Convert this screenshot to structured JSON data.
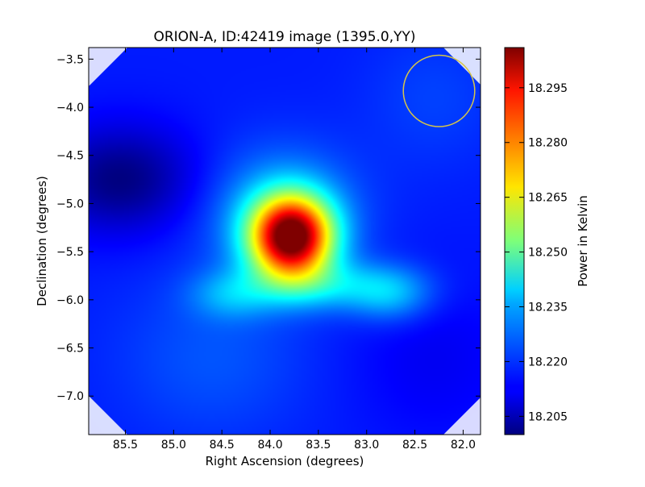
{
  "chart_data": {
    "type": "heatmap",
    "title": "ORION-A, ID:42419 image (1395.0,YY)",
    "xlabel": "Right Ascension (degrees)",
    "ylabel": "Declination (degrees)",
    "xlim": [
      85.88,
      81.82
    ],
    "ylim": [
      -7.4,
      -3.38
    ],
    "xticks": [
      85.5,
      85.0,
      84.5,
      84.0,
      83.5,
      83.0,
      82.5,
      82.0
    ],
    "xtick_labels": [
      "85.5",
      "85.0",
      "84.5",
      "84.0",
      "83.5",
      "83.0",
      "82.5",
      "82.0"
    ],
    "yticks": [
      -3.5,
      -4.0,
      -4.5,
      -5.0,
      -5.5,
      -6.0,
      -6.5,
      -7.0
    ],
    "ytick_labels": [
      "−3.5",
      "−4.0",
      "−4.5",
      "−5.0",
      "−5.5",
      "−6.0",
      "−6.5",
      "−7.0"
    ],
    "colorbar": {
      "label": "Power in Kelvin",
      "range": [
        18.2,
        18.306
      ],
      "ticks": [
        18.205,
        18.22,
        18.235,
        18.25,
        18.265,
        18.28,
        18.295
      ],
      "tick_labels": [
        "18.205",
        "18.220",
        "18.235",
        "18.250",
        "18.265",
        "18.280",
        "18.295"
      ],
      "colormap": "jet"
    },
    "background_level": 18.216,
    "features": [
      {
        "kind": "peak",
        "ra": 83.78,
        "dec": -5.35,
        "value": 18.306
      },
      {
        "kind": "ridge",
        "ra": 83.3,
        "dec": -5.85,
        "value": 18.238
      },
      {
        "kind": "ridge",
        "ra": 82.7,
        "dec": -5.95,
        "value": 18.236
      },
      {
        "kind": "ridge",
        "ra": 84.4,
        "dec": -5.9,
        "value": 18.235
      },
      {
        "kind": "minimum",
        "ra": 85.55,
        "dec": -4.75,
        "value": 18.201
      }
    ],
    "beam_circle": {
      "ra": 82.25,
      "dec": -3.83,
      "radius_deg": 0.37,
      "color": "#d4c44a"
    }
  }
}
